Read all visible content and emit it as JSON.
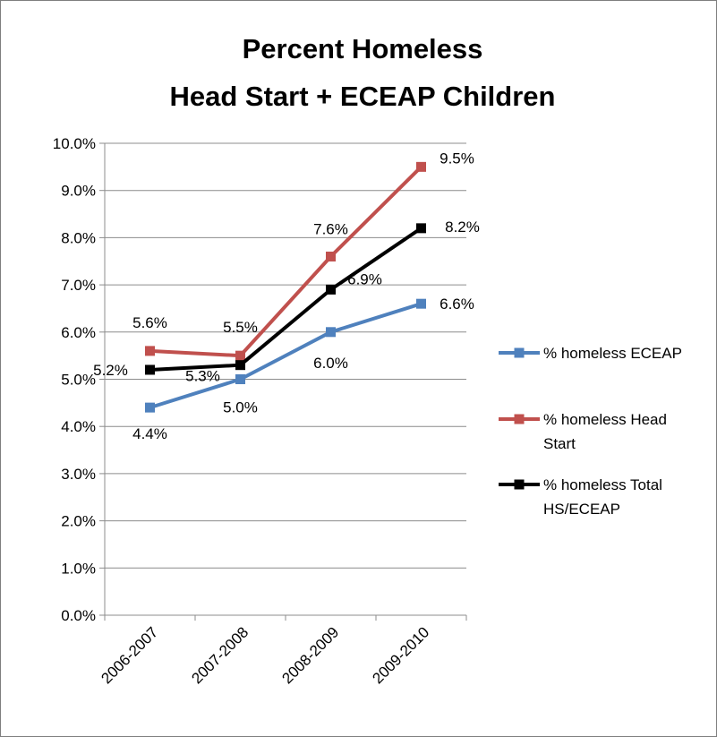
{
  "chart_data": {
    "type": "line",
    "title_lines": [
      "Percent Homeless",
      "Head Start + ECEAP Children"
    ],
    "categories": [
      "2006-2007",
      "2007-2008",
      "2008-2009",
      "2009-2010"
    ],
    "ylim": [
      0,
      10
    ],
    "y_ticks": [
      "0.0%",
      "1.0%",
      "2.0%",
      "3.0%",
      "4.0%",
      "5.0%",
      "6.0%",
      "7.0%",
      "8.0%",
      "9.0%",
      "10.0%"
    ],
    "grid": true,
    "legend_position": "right",
    "series": [
      {
        "name": "% homeless ECEAP",
        "legend_lines": [
          "% homeless ECEAP"
        ],
        "color": "#4F81BD",
        "values": [
          4.4,
          5.0,
          6.0,
          6.6
        ],
        "labels": [
          "4.4%",
          "5.0%",
          "6.0%",
          "6.6%"
        ]
      },
      {
        "name": "% homeless Head Start",
        "legend_lines": [
          "% homeless Head",
          "Start"
        ],
        "color": "#C0504D",
        "values": [
          5.6,
          5.5,
          7.6,
          9.5
        ],
        "labels": [
          "5.6%",
          "5.5%",
          "7.6%",
          "9.5%"
        ]
      },
      {
        "name": "% homeless Total HS/ECEAP",
        "legend_lines": [
          "% homeless Total",
          "HS/ECEAP"
        ],
        "color": "#000000",
        "values": [
          5.2,
          5.3,
          6.9,
          8.2
        ],
        "labels": [
          "5.2%",
          "5.3%",
          "6.9%",
          "8.2%"
        ]
      }
    ]
  }
}
